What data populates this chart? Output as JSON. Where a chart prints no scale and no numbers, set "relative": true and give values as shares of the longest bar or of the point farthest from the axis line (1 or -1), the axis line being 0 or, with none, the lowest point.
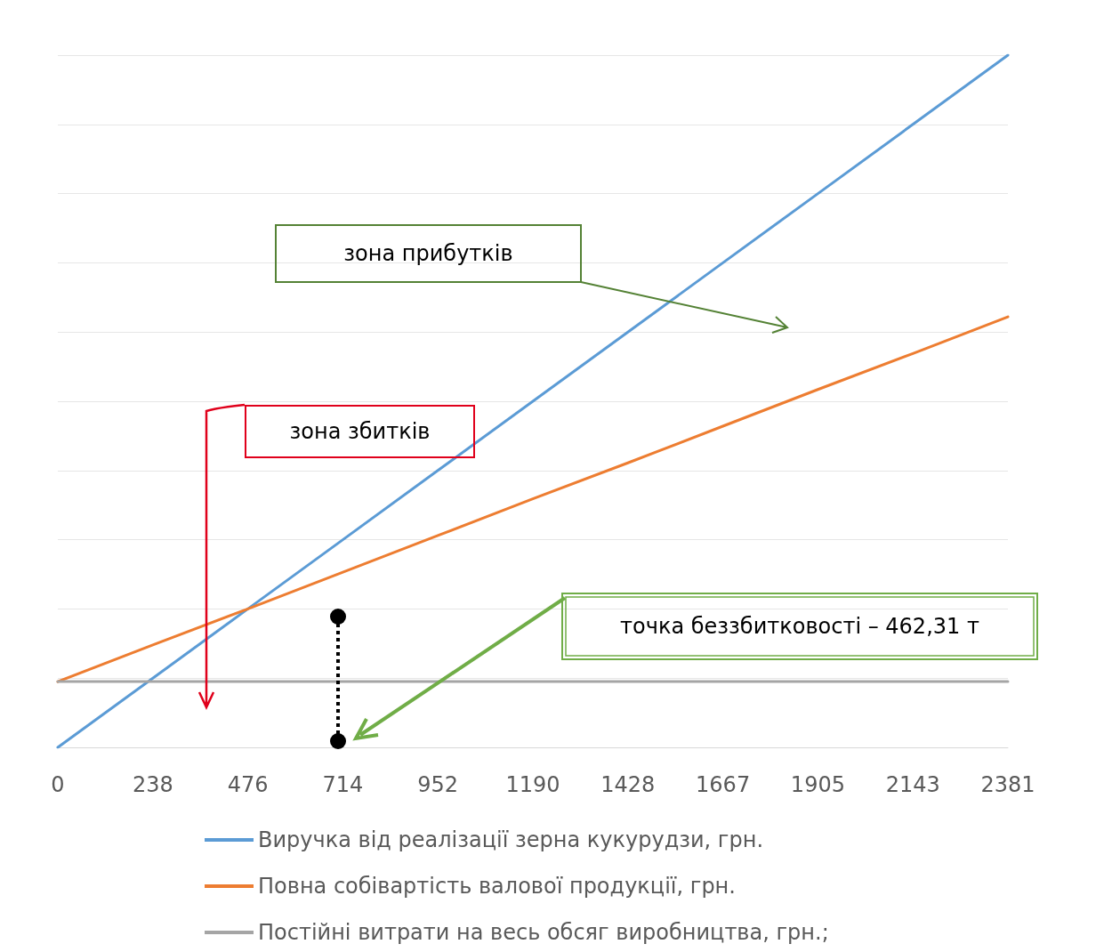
{
  "chart_data": {
    "type": "line",
    "relative": true,
    "categories": [
      "0",
      "238",
      "476",
      "714",
      "952",
      "1190",
      "1428",
      "1667",
      "1905",
      "2143",
      "2381"
    ],
    "series": [
      {
        "name": "Виручка від реалізації зерна кукурудзи, грн.",
        "color": "#5b9bd5",
        "values": [
          0,
          0.1,
          0.2,
          0.3,
          0.4,
          0.5,
          0.6,
          0.7,
          0.8,
          0.9,
          1
        ]
      },
      {
        "name": "Повна собівартість валової продукції, грн.",
        "color": "#ed7d31",
        "values": [
          0.095,
          0.148,
          0.2,
          0.253,
          0.306,
          0.359,
          0.411,
          0.464,
          0.517,
          0.569,
          0.622
        ]
      },
      {
        "name": "Постійні витрати на весь обсяг виробництва, грн.;",
        "color": "#a5a5a5",
        "values": [
          0.095,
          0.095,
          0.095,
          0.095,
          0.095,
          0.095,
          0.095,
          0.095,
          0.095,
          0.095,
          0.095
        ]
      }
    ],
    "annotations": [
      "зона прибутків",
      "зона збитків",
      "точка беззбитковості – 462,31 т"
    ],
    "grid": "y",
    "legend": "bottom",
    "marker": "none",
    "line_style": "solid"
  }
}
